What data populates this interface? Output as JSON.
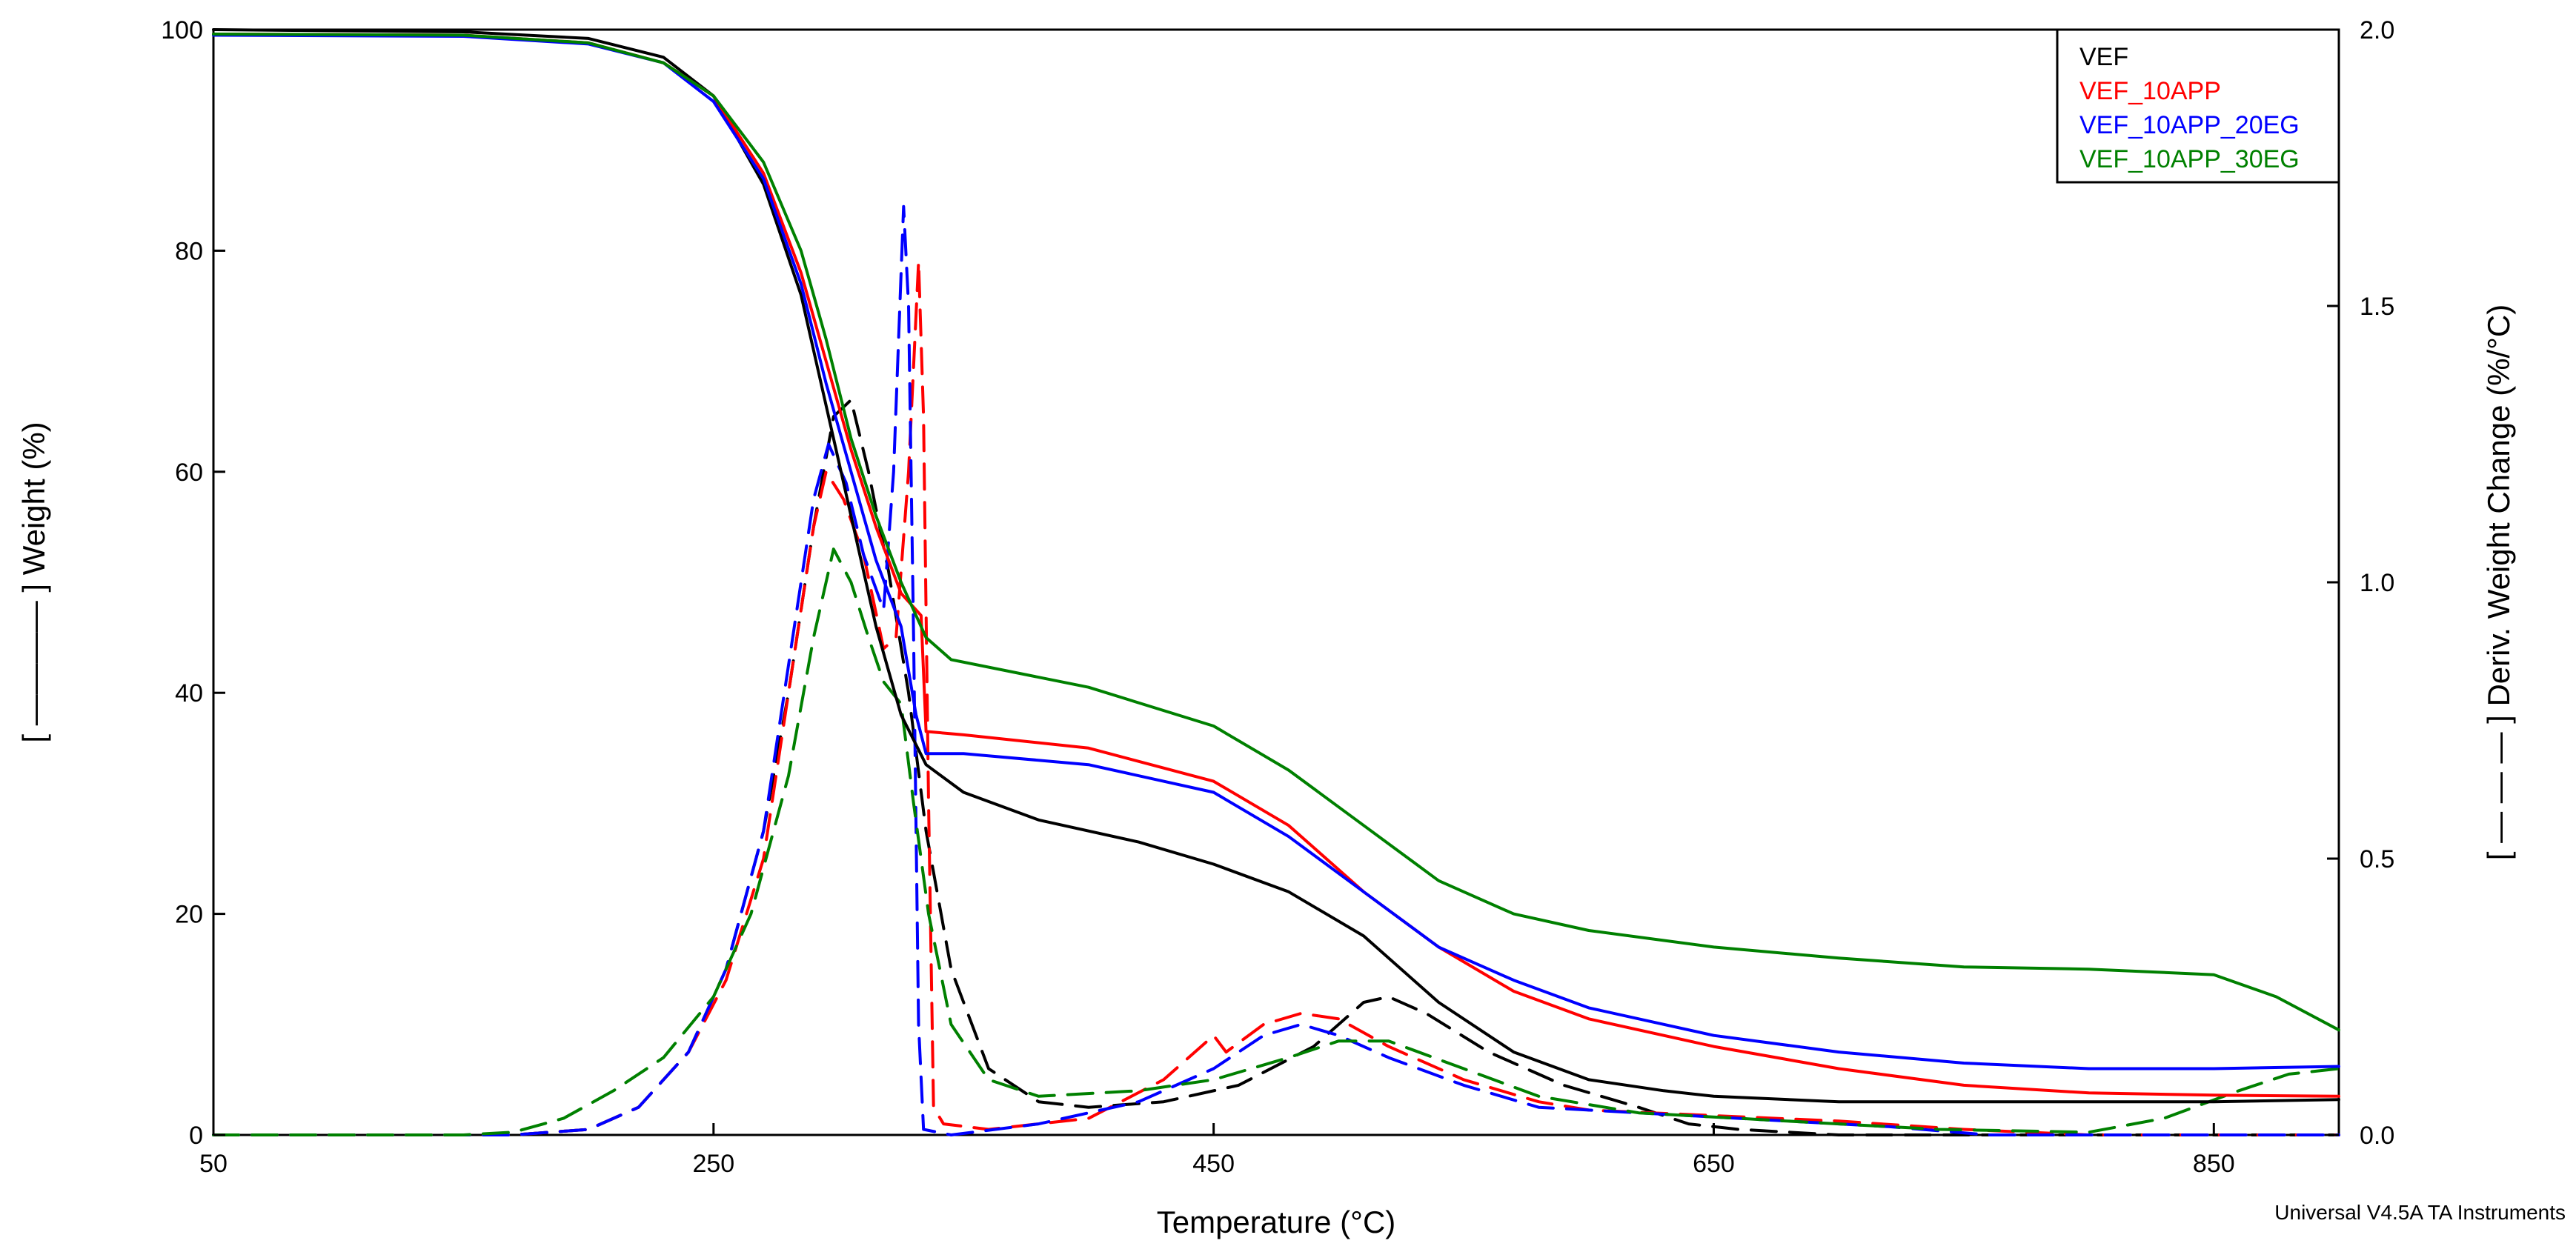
{
  "chart_data": {
    "type": "line",
    "xlabel": "Temperature (°C)",
    "ylabel": "[ ———— ] Weight (%)",
    "y2label": "[ — — — ] Deriv. Weight Change (%/°C)",
    "xlim": [
      50,
      900
    ],
    "ylim": [
      0,
      100
    ],
    "y2lim": [
      0,
      2.0
    ],
    "x_ticks": [
      50,
      250,
      450,
      650,
      850
    ],
    "y_ticks": [
      0,
      20,
      40,
      60,
      80,
      100
    ],
    "y2_ticks": [
      "0.0",
      "0.5",
      "1.0",
      "1.5",
      "2.0"
    ],
    "grid": false,
    "legend_position": "top-right",
    "footer": "Universal V4.5A TA Instruments",
    "colors": {
      "VEF": "#000000",
      "VEF_10APP": "#ff0000",
      "VEF_10APP_20EG": "#0000ff",
      "VEF_10APP_30EG": "#008000"
    },
    "legend": [
      "VEF",
      "VEF_10APP",
      "VEF_10APP_20EG",
      "VEF_10APP_30EG"
    ],
    "weight_series": [
      {
        "name": "VEF",
        "points": [
          [
            50,
            100
          ],
          [
            150,
            99.8
          ],
          [
            200,
            99.2
          ],
          [
            230,
            97.5
          ],
          [
            250,
            94
          ],
          [
            270,
            86
          ],
          [
            285,
            76
          ],
          [
            295,
            66
          ],
          [
            305,
            56
          ],
          [
            315,
            46
          ],
          [
            325,
            38
          ],
          [
            335,
            33.5
          ],
          [
            350,
            31
          ],
          [
            380,
            28.5
          ],
          [
            420,
            26.5
          ],
          [
            450,
            24.5
          ],
          [
            480,
            22
          ],
          [
            510,
            18
          ],
          [
            540,
            12
          ],
          [
            570,
            7.5
          ],
          [
            600,
            5
          ],
          [
            630,
            4
          ],
          [
            650,
            3.5
          ],
          [
            700,
            3
          ],
          [
            750,
            3
          ],
          [
            800,
            3
          ],
          [
            850,
            3
          ],
          [
            900,
            3.2
          ]
        ]
      },
      {
        "name": "VEF_10APP",
        "points": [
          [
            50,
            99.6
          ],
          [
            150,
            99.5
          ],
          [
            200,
            98.8
          ],
          [
            230,
            97
          ],
          [
            250,
            94
          ],
          [
            270,
            87
          ],
          [
            285,
            78
          ],
          [
            295,
            70
          ],
          [
            305,
            62
          ],
          [
            315,
            55
          ],
          [
            325,
            49
          ],
          [
            333,
            47
          ],
          [
            335,
            36.5
          ],
          [
            350,
            36.2
          ],
          [
            400,
            35
          ],
          [
            450,
            32
          ],
          [
            480,
            28
          ],
          [
            510,
            22
          ],
          [
            540,
            17
          ],
          [
            570,
            13
          ],
          [
            600,
            10.5
          ],
          [
            650,
            8
          ],
          [
            700,
            6
          ],
          [
            750,
            4.5
          ],
          [
            800,
            3.8
          ],
          [
            850,
            3.6
          ],
          [
            900,
            3.5
          ]
        ]
      },
      {
        "name": "VEF_10APP_20EG",
        "points": [
          [
            50,
            99.5
          ],
          [
            150,
            99.4
          ],
          [
            200,
            98.7
          ],
          [
            230,
            97
          ],
          [
            250,
            93.5
          ],
          [
            270,
            86.5
          ],
          [
            285,
            77
          ],
          [
            295,
            68
          ],
          [
            305,
            60
          ],
          [
            315,
            52
          ],
          [
            325,
            46
          ],
          [
            331,
            38
          ],
          [
            335,
            34.5
          ],
          [
            350,
            34.5
          ],
          [
            400,
            33.5
          ],
          [
            450,
            31
          ],
          [
            480,
            27
          ],
          [
            510,
            22
          ],
          [
            540,
            17
          ],
          [
            570,
            14
          ],
          [
            600,
            11.5
          ],
          [
            650,
            9
          ],
          [
            700,
            7.5
          ],
          [
            750,
            6.5
          ],
          [
            800,
            6
          ],
          [
            850,
            6
          ],
          [
            900,
            6.2
          ]
        ]
      },
      {
        "name": "VEF_10APP_30EG",
        "points": [
          [
            50,
            99.6
          ],
          [
            150,
            99.5
          ],
          [
            200,
            98.8
          ],
          [
            230,
            97
          ],
          [
            250,
            94
          ],
          [
            270,
            88
          ],
          [
            285,
            80
          ],
          [
            295,
            72
          ],
          [
            305,
            63
          ],
          [
            315,
            56
          ],
          [
            325,
            50
          ],
          [
            335,
            45
          ],
          [
            345,
            43
          ],
          [
            400,
            40.5
          ],
          [
            450,
            37
          ],
          [
            480,
            33
          ],
          [
            510,
            28
          ],
          [
            540,
            23
          ],
          [
            570,
            20
          ],
          [
            600,
            18.5
          ],
          [
            650,
            17
          ],
          [
            700,
            16
          ],
          [
            750,
            15.2
          ],
          [
            800,
            15
          ],
          [
            850,
            14.5
          ],
          [
            875,
            12.5
          ],
          [
            900,
            9.5
          ]
        ]
      }
    ],
    "deriv_series": [
      {
        "name": "VEF",
        "points": [
          [
            50,
            0
          ],
          [
            170,
            0
          ],
          [
            200,
            0.01
          ],
          [
            220,
            0.05
          ],
          [
            240,
            0.15
          ],
          [
            255,
            0.3
          ],
          [
            270,
            0.55
          ],
          [
            280,
            0.8
          ],
          [
            290,
            1.1
          ],
          [
            298,
            1.3
          ],
          [
            305,
            1.33
          ],
          [
            312,
            1.2
          ],
          [
            320,
            1.02
          ],
          [
            328,
            0.8
          ],
          [
            335,
            0.55
          ],
          [
            345,
            0.3
          ],
          [
            360,
            0.12
          ],
          [
            380,
            0.06
          ],
          [
            400,
            0.05
          ],
          [
            430,
            0.06
          ],
          [
            460,
            0.09
          ],
          [
            490,
            0.16
          ],
          [
            510,
            0.24
          ],
          [
            520,
            0.25
          ],
          [
            535,
            0.22
          ],
          [
            560,
            0.15
          ],
          [
            590,
            0.09
          ],
          [
            620,
            0.05
          ],
          [
            640,
            0.02
          ],
          [
            660,
            0.01
          ],
          [
            700,
            0
          ],
          [
            900,
            0
          ]
        ]
      },
      {
        "name": "VEF_10APP",
        "points": [
          [
            50,
            0
          ],
          [
            170,
            0
          ],
          [
            200,
            0.01
          ],
          [
            220,
            0.05
          ],
          [
            240,
            0.15
          ],
          [
            255,
            0.28
          ],
          [
            270,
            0.5
          ],
          [
            280,
            0.8
          ],
          [
            290,
            1.1
          ],
          [
            295,
            1.2
          ],
          [
            302,
            1.15
          ],
          [
            310,
            1.05
          ],
          [
            318,
            0.88
          ],
          [
            323,
            0.9
          ],
          [
            328,
            1.2
          ],
          [
            332,
            1.58
          ],
          [
            334,
            1.3
          ],
          [
            336,
            0.6
          ],
          [
            338,
            0.05
          ],
          [
            342,
            0.02
          ],
          [
            360,
            0.01
          ],
          [
            400,
            0.03
          ],
          [
            430,
            0.1
          ],
          [
            445,
            0.16
          ],
          [
            450,
            0.18
          ],
          [
            455,
            0.15
          ],
          [
            470,
            0.2
          ],
          [
            485,
            0.22
          ],
          [
            500,
            0.21
          ],
          [
            520,
            0.16
          ],
          [
            550,
            0.1
          ],
          [
            580,
            0.06
          ],
          [
            600,
            0.045
          ],
          [
            650,
            0.035
          ],
          [
            700,
            0.025
          ],
          [
            750,
            0.01
          ],
          [
            800,
            0
          ],
          [
            900,
            0
          ]
        ]
      },
      {
        "name": "VEF_10APP_20EG",
        "points": [
          [
            50,
            0
          ],
          [
            170,
            0
          ],
          [
            200,
            0.01
          ],
          [
            220,
            0.05
          ],
          [
            240,
            0.15
          ],
          [
            255,
            0.3
          ],
          [
            270,
            0.55
          ],
          [
            280,
            0.85
          ],
          [
            290,
            1.15
          ],
          [
            296,
            1.25
          ],
          [
            303,
            1.18
          ],
          [
            310,
            1.05
          ],
          [
            318,
            0.95
          ],
          [
            322,
            1.2
          ],
          [
            326,
            1.68
          ],
          [
            328,
            1.5
          ],
          [
            330,
            0.9
          ],
          [
            332,
            0.2
          ],
          [
            334,
            0.01
          ],
          [
            345,
            0
          ],
          [
            380,
            0.02
          ],
          [
            420,
            0.06
          ],
          [
            450,
            0.12
          ],
          [
            470,
            0.18
          ],
          [
            485,
            0.2
          ],
          [
            500,
            0.18
          ],
          [
            520,
            0.14
          ],
          [
            550,
            0.09
          ],
          [
            580,
            0.05
          ],
          [
            620,
            0.04
          ],
          [
            680,
            0.025
          ],
          [
            720,
            0.015
          ],
          [
            760,
            0
          ],
          [
            900,
            0
          ]
        ]
      },
      {
        "name": "VEF_10APP_30EG",
        "points": [
          [
            50,
            0
          ],
          [
            150,
            0
          ],
          [
            170,
            0.005
          ],
          [
            190,
            0.03
          ],
          [
            210,
            0.08
          ],
          [
            230,
            0.14
          ],
          [
            250,
            0.25
          ],
          [
            265,
            0.4
          ],
          [
            280,
            0.65
          ],
          [
            290,
            0.9
          ],
          [
            298,
            1.06
          ],
          [
            305,
            1.0
          ],
          [
            312,
            0.9
          ],
          [
            318,
            0.82
          ],
          [
            325,
            0.78
          ],
          [
            330,
            0.6
          ],
          [
            336,
            0.4
          ],
          [
            345,
            0.2
          ],
          [
            360,
            0.1
          ],
          [
            380,
            0.07
          ],
          [
            420,
            0.08
          ],
          [
            450,
            0.1
          ],
          [
            480,
            0.14
          ],
          [
            500,
            0.17
          ],
          [
            520,
            0.17
          ],
          [
            550,
            0.12
          ],
          [
            580,
            0.07
          ],
          [
            620,
            0.04
          ],
          [
            660,
            0.03
          ],
          [
            700,
            0.02
          ],
          [
            740,
            0.01
          ],
          [
            800,
            0.005
          ],
          [
            830,
            0.03
          ],
          [
            860,
            0.08
          ],
          [
            880,
            0.11
          ],
          [
            900,
            0.12
          ]
        ]
      }
    ]
  }
}
